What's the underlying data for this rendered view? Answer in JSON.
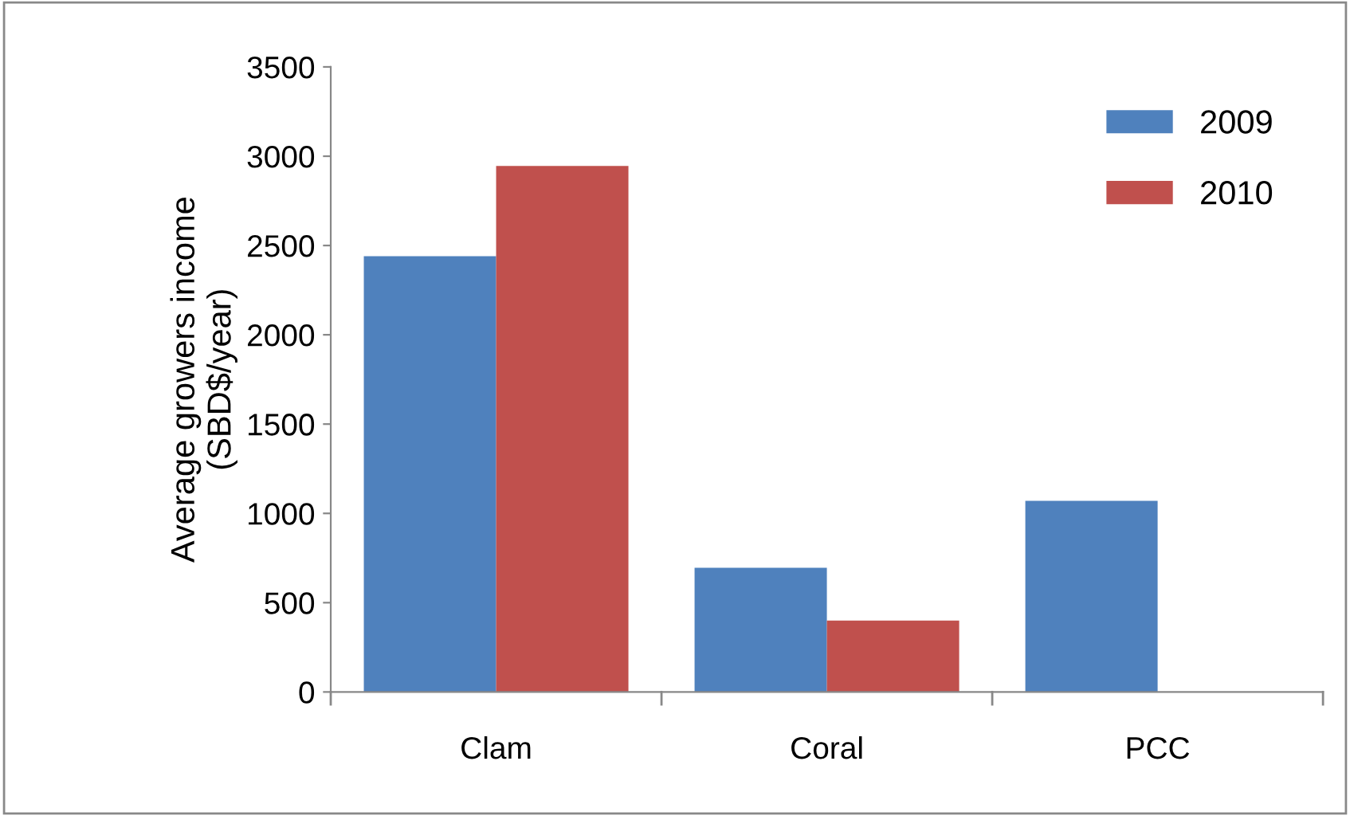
{
  "chart_data": {
    "type": "bar",
    "ylabel": "Average growers income\n(SBD$/year)",
    "categories": [
      "Clam",
      "Coral",
      "PCC"
    ],
    "series": [
      {
        "name": "2009",
        "color": "#4f81bd",
        "values": [
          2440,
          695,
          1070
        ]
      },
      {
        "name": "2010",
        "color": "#c0504d",
        "values": [
          2945,
          400,
          null
        ]
      }
    ],
    "ylim": [
      0,
      3500
    ],
    "yticks": [
      0,
      500,
      1000,
      1500,
      2000,
      2500,
      3000,
      3500
    ],
    "grid": false,
    "legend": "top right"
  }
}
